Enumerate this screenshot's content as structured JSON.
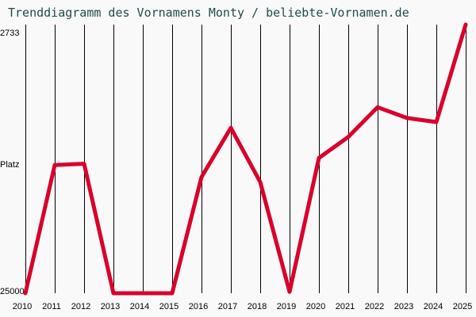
{
  "header": {
    "title": "Trenddiagramm des Vornamens Monty / beliebte-Vornamen.de"
  },
  "axis": {
    "y_top_label": "2733",
    "y_mid_label": "Platz",
    "y_bottom_label": "25000"
  },
  "colors": {
    "line": "#d9002b",
    "grid": "#000000",
    "background": "#f9f9f9",
    "title": "#1f4a4a"
  },
  "chart_data": {
    "type": "line",
    "title": "Trenddiagramm des Vornamens Monty / beliebte-Vornamen.de",
    "xlabel": "",
    "ylabel": "Platz",
    "y_scale": "log",
    "y_inverted": true,
    "ylim": [
      2733,
      25000
    ],
    "grid": {
      "vertical": true,
      "horizontal": false
    },
    "categories": [
      "2010",
      "2011",
      "2012",
      "2013",
      "2014",
      "2015",
      "2016",
      "2017",
      "2018",
      "2019",
      "2020",
      "2021",
      "2022",
      "2023",
      "2024",
      "2025"
    ],
    "series": [
      {
        "name": "Monty",
        "values": [
          25000,
          8700,
          8600,
          25000,
          25000,
          25000,
          9600,
          6400,
          10000,
          24700,
          8200,
          6900,
          5400,
          5900,
          6100,
          2733
        ]
      }
    ]
  }
}
